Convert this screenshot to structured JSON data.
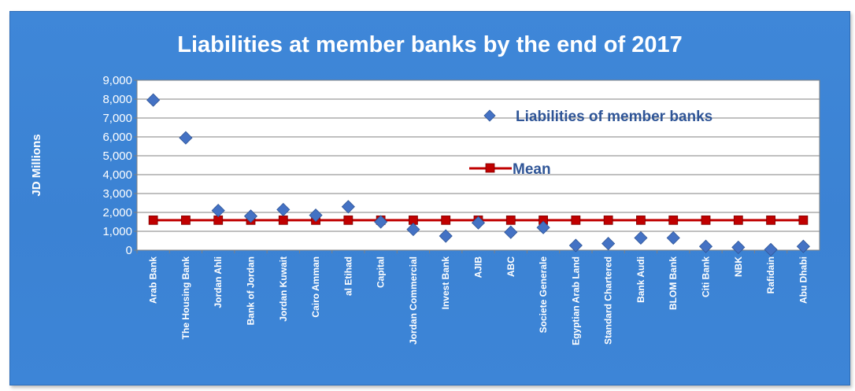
{
  "chart_data": {
    "type": "scatter",
    "title": "Liabilities at member banks by the end of 2017",
    "ylabel": "JD Millions",
    "xlabel": "",
    "ylim": [
      0,
      9000
    ],
    "yticks": [
      "0",
      "1,000",
      "2,000",
      "3,000",
      "4,000",
      "5,000",
      "6,000",
      "7,000",
      "8,000",
      "9,000"
    ],
    "grid": true,
    "legend_position": "inside-right",
    "categories": [
      "Arab Bank",
      "The Housing Bank",
      "Jordan Ahli",
      "Bank of Jordan",
      "Jordan Kuwait",
      "Cairo Amman",
      "al Etihad",
      "Capital",
      "Jordan Commercial",
      "Invest Bank",
      "AJIB",
      "ABC",
      "Societe Generale",
      "Egyptian Arab Land",
      "Standard Chartered",
      "Bank Audi",
      "BLOM Bank",
      "Citi Bank",
      "NBK",
      "Rafidain",
      "Abu Dhabi"
    ],
    "series": [
      {
        "name": "Liabilities of member banks",
        "marker": "diamond",
        "color": "#4472c4",
        "values": [
          7950,
          5950,
          2100,
          1800,
          2150,
          1850,
          2300,
          1500,
          1100,
          750,
          1450,
          950,
          1200,
          250,
          350,
          650,
          650,
          200,
          150,
          30,
          200
        ]
      },
      {
        "name": "Mean",
        "marker": "square",
        "color": "#c00000",
        "values": [
          1590,
          1590,
          1590,
          1590,
          1590,
          1590,
          1590,
          1590,
          1590,
          1590,
          1590,
          1590,
          1590,
          1590,
          1590,
          1590,
          1590,
          1590,
          1590,
          1590,
          1590
        ]
      }
    ]
  }
}
